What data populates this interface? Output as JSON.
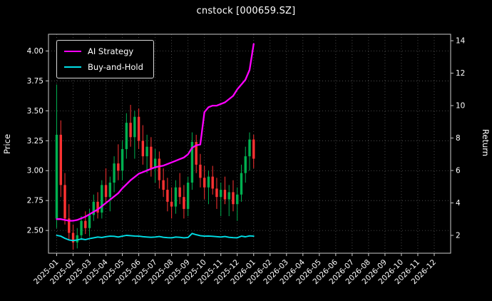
{
  "title": "cnstock [000659.SZ]",
  "axes": {
    "left_label": "Price",
    "right_label": "Return",
    "price_ticks": [
      "2.50",
      "2.75",
      "3.00",
      "3.25",
      "3.50",
      "3.75",
      "4.00"
    ],
    "price_tick_values": [
      2.5,
      2.75,
      3.0,
      3.25,
      3.5,
      3.75,
      4.0
    ],
    "return_ticks": [
      "2",
      "4",
      "6",
      "8",
      "10",
      "12",
      "14"
    ],
    "return_tick_values": [
      2,
      4,
      6,
      8,
      10,
      12,
      14
    ],
    "x_tick_labels": [
      "2025-01",
      "2025-02",
      "2025-03",
      "2025-04",
      "2025-05",
      "2025-06",
      "2025-07",
      "2025-08",
      "2025-09",
      "2025-10",
      "2025-11",
      "2025-12",
      "2026-01",
      "2026-02",
      "2026-03",
      "2026-04",
      "2026-05",
      "2026-06",
      "2026-07",
      "2026-08",
      "2026-09",
      "2026-10",
      "2026-11",
      "2026-12"
    ],
    "price_range": [
      2.31,
      4.14
    ],
    "return_range": [
      0.9,
      14.4
    ],
    "x_range_months": [
      -0.5,
      24.0
    ]
  },
  "legend": [
    {
      "label": "AI Strategy",
      "color": "#ff00ff"
    },
    {
      "label": "Buy-and-Hold",
      "color": "#00e0e8"
    }
  ],
  "colors": {
    "background": "#000000",
    "text": "#ffffff",
    "grid": "#585858",
    "spine": "#cccccc",
    "up": "#00b050",
    "down": "#ff3232",
    "ai": "#ff00ff",
    "hold": "#00e0e8"
  },
  "chart_data": {
    "type": "candlestick+line",
    "title": "cnstock [000659.SZ]",
    "xlabel": "",
    "ylabel_left": "Price",
    "ylabel_right": "Return",
    "x_months": [
      0,
      0.25,
      0.5,
      0.75,
      1,
      1.25,
      1.5,
      1.75,
      2,
      2.25,
      2.5,
      2.75,
      3,
      3.25,
      3.5,
      3.75,
      4,
      4.25,
      4.5,
      4.75,
      5,
      5.25,
      5.5,
      5.75,
      6,
      6.25,
      6.5,
      6.75,
      7,
      7.25,
      7.5,
      7.75,
      8,
      8.25,
      8.5,
      8.75,
      9,
      9.25,
      9.5,
      9.75,
      10,
      10.25,
      10.5,
      10.75,
      11,
      11.25,
      11.5,
      11.75,
      12
    ],
    "candles": {
      "open": [
        2.6,
        3.3,
        2.88,
        2.6,
        2.48,
        2.4,
        2.46,
        2.58,
        2.52,
        2.63,
        2.74,
        2.65,
        2.88,
        2.78,
        2.9,
        3.06,
        3.0,
        3.18,
        3.4,
        3.28,
        3.45,
        3.25,
        3.12,
        3.2,
        3.02,
        3.1,
        2.92,
        2.84,
        2.74,
        2.7,
        2.86,
        2.78,
        2.68,
        2.9,
        3.24,
        3.05,
        2.94,
        2.86,
        2.95,
        2.85,
        2.78,
        2.84,
        2.76,
        2.82,
        2.72,
        2.8,
        2.98,
        3.12,
        3.26
      ],
      "high": [
        3.72,
        3.42,
        2.98,
        2.72,
        2.55,
        2.52,
        2.62,
        2.66,
        2.68,
        2.8,
        2.82,
        2.92,
        3.02,
        2.95,
        3.12,
        3.22,
        3.25,
        3.48,
        3.55,
        3.5,
        3.52,
        3.38,
        3.3,
        3.28,
        3.18,
        3.16,
        3.02,
        2.94,
        2.86,
        2.92,
        2.98,
        2.88,
        2.95,
        3.32,
        3.3,
        3.14,
        3.04,
        3.0,
        3.04,
        2.94,
        2.9,
        2.95,
        2.88,
        2.92,
        2.86,
        3.05,
        3.2,
        3.32,
        3.3
      ],
      "low": [
        2.52,
        2.78,
        2.55,
        2.42,
        2.34,
        2.35,
        2.42,
        2.47,
        2.45,
        2.58,
        2.6,
        2.6,
        2.72,
        2.66,
        2.82,
        2.92,
        2.92,
        3.1,
        3.2,
        3.1,
        3.18,
        3.05,
        2.98,
        2.95,
        2.9,
        2.85,
        2.78,
        2.66,
        2.6,
        2.64,
        2.72,
        2.6,
        2.62,
        2.84,
        2.98,
        2.86,
        2.76,
        2.72,
        2.8,
        2.68,
        2.62,
        2.72,
        2.62,
        2.66,
        2.58,
        2.74,
        2.9,
        3.0,
        3.02
      ],
      "close": [
        3.3,
        2.88,
        2.6,
        2.48,
        2.4,
        2.46,
        2.58,
        2.52,
        2.63,
        2.74,
        2.65,
        2.88,
        2.78,
        2.9,
        3.06,
        3.0,
        3.18,
        3.4,
        3.28,
        3.45,
        3.25,
        3.12,
        3.2,
        3.02,
        3.1,
        2.92,
        2.84,
        2.74,
        2.7,
        2.86,
        2.78,
        2.68,
        2.9,
        3.24,
        3.05,
        2.94,
        2.86,
        2.95,
        2.85,
        2.78,
        2.84,
        2.76,
        2.82,
        2.72,
        2.8,
        2.98,
        3.12,
        3.26,
        3.1
      ]
    },
    "series": [
      {
        "name": "AI Strategy",
        "axis": "return",
        "values": [
          3.0,
          3.0,
          2.95,
          2.9,
          2.9,
          2.95,
          3.05,
          3.15,
          3.3,
          3.45,
          3.6,
          3.8,
          4.0,
          4.2,
          4.4,
          4.6,
          4.9,
          5.15,
          5.4,
          5.6,
          5.8,
          5.9,
          6.0,
          6.1,
          6.2,
          6.25,
          6.3,
          6.4,
          6.5,
          6.6,
          6.7,
          6.8,
          7.0,
          7.4,
          7.55,
          7.6,
          9.6,
          9.9,
          10.0,
          10.0,
          10.1,
          10.2,
          10.4,
          10.6,
          11.0,
          11.3,
          11.6,
          12.2,
          13.8
        ]
      },
      {
        "name": "Buy-and-Hold",
        "axis": "return",
        "values": [
          2.0,
          1.95,
          1.82,
          1.72,
          1.68,
          1.72,
          1.78,
          1.74,
          1.8,
          1.85,
          1.9,
          1.87,
          1.92,
          1.95,
          1.94,
          1.9,
          1.95,
          2.0,
          1.98,
          1.96,
          1.95,
          1.92,
          1.9,
          1.88,
          1.9,
          1.93,
          1.88,
          1.86,
          1.85,
          1.9,
          1.88,
          1.85,
          1.87,
          2.12,
          2.04,
          1.98,
          1.95,
          1.96,
          1.94,
          1.92,
          1.9,
          1.93,
          1.88,
          1.86,
          1.85,
          1.95,
          1.91,
          1.97,
          1.95
        ]
      }
    ],
    "legend_position": "upper-left",
    "grid": "dotted"
  }
}
